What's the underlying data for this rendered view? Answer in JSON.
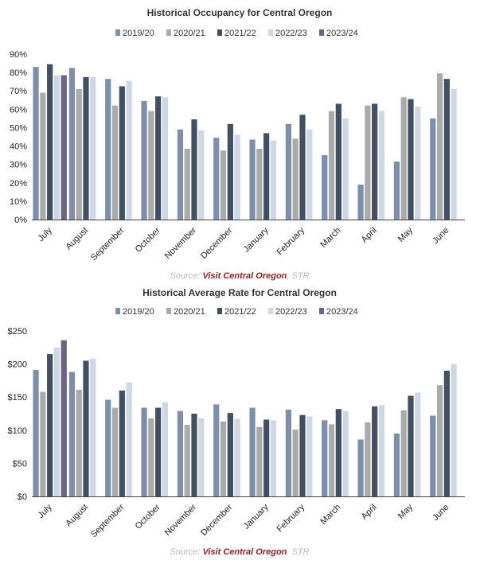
{
  "colors": [
    "#7d8fac",
    "#aaaaaa",
    "#434f62",
    "#cdd7e6",
    "#6a6385"
  ],
  "chart_data": [
    {
      "type": "bar",
      "title": "Historical Occupancy for Central Oregon",
      "categories": [
        "July",
        "August",
        "September",
        "October",
        "November",
        "December",
        "January",
        "February",
        "March",
        "April",
        "May",
        "June"
      ],
      "ylim": [
        0,
        90
      ],
      "yticks": [
        "0%",
        "10%",
        "20%",
        "30%",
        "40%",
        "50%",
        "60%",
        "70%",
        "80%",
        "90%"
      ],
      "legend_placement": "top-center",
      "grid": false,
      "series": [
        {
          "name": "2019/20",
          "values": [
            83,
            82.5,
            76.5,
            64.5,
            49,
            44.5,
            43.5,
            52,
            35,
            19,
            31.5,
            55
          ]
        },
        {
          "name": "2020/21",
          "values": [
            69,
            71,
            62,
            59,
            38.5,
            37.5,
            38.5,
            44,
            59,
            62,
            66.5,
            79.5
          ]
        },
        {
          "name": "2021/22",
          "values": [
            84.5,
            77.5,
            72.5,
            67,
            54.5,
            52,
            47,
            57,
            63,
            63,
            65.5,
            76.5
          ]
        },
        {
          "name": "2022/23",
          "values": [
            78.5,
            77.5,
            75.5,
            66.5,
            48.5,
            46,
            43,
            49,
            55,
            59,
            61.5,
            71
          ]
        },
        {
          "name": "2023/24",
          "values": [
            78.5,
            null,
            null,
            null,
            null,
            null,
            null,
            null,
            null,
            null,
            null,
            null
          ]
        }
      ],
      "source": {
        "prefix": "Source: ",
        "brand": "Visit Central Oregon",
        "suffix": ", STR"
      }
    },
    {
      "type": "bar",
      "title": "Historical Average Rate for Central Oregon",
      "categories": [
        "July",
        "August",
        "September",
        "October",
        "November",
        "December",
        "January",
        "February",
        "March",
        "April",
        "May",
        "June"
      ],
      "ylim": [
        0,
        250
      ],
      "yticks": [
        "$0",
        "$50",
        "$100",
        "$150",
        "$200",
        "$250"
      ],
      "legend_placement": "top-center",
      "grid": false,
      "series": [
        {
          "name": "2019/20",
          "values": [
            191,
            188,
            146,
            134,
            129,
            139,
            134,
            131,
            115,
            86,
            95,
            122
          ]
        },
        {
          "name": "2020/21",
          "values": [
            158,
            161,
            134,
            118,
            108,
            113,
            105,
            101,
            109,
            112,
            130,
            168
          ]
        },
        {
          "name": "2021/22",
          "values": [
            215,
            205,
            160,
            134,
            125,
            126,
            116,
            123,
            132,
            136,
            152,
            190
          ]
        },
        {
          "name": "2022/23",
          "values": [
            225,
            208,
            172,
            142,
            118,
            117,
            115,
            121,
            129,
            138,
            157,
            200
          ]
        },
        {
          "name": "2023/24",
          "values": [
            236,
            null,
            null,
            null,
            null,
            null,
            null,
            null,
            null,
            null,
            null,
            null
          ]
        }
      ],
      "source": {
        "prefix": "Source: ",
        "brand": "Visit Central Oregon",
        "suffix": ", STR"
      }
    }
  ]
}
